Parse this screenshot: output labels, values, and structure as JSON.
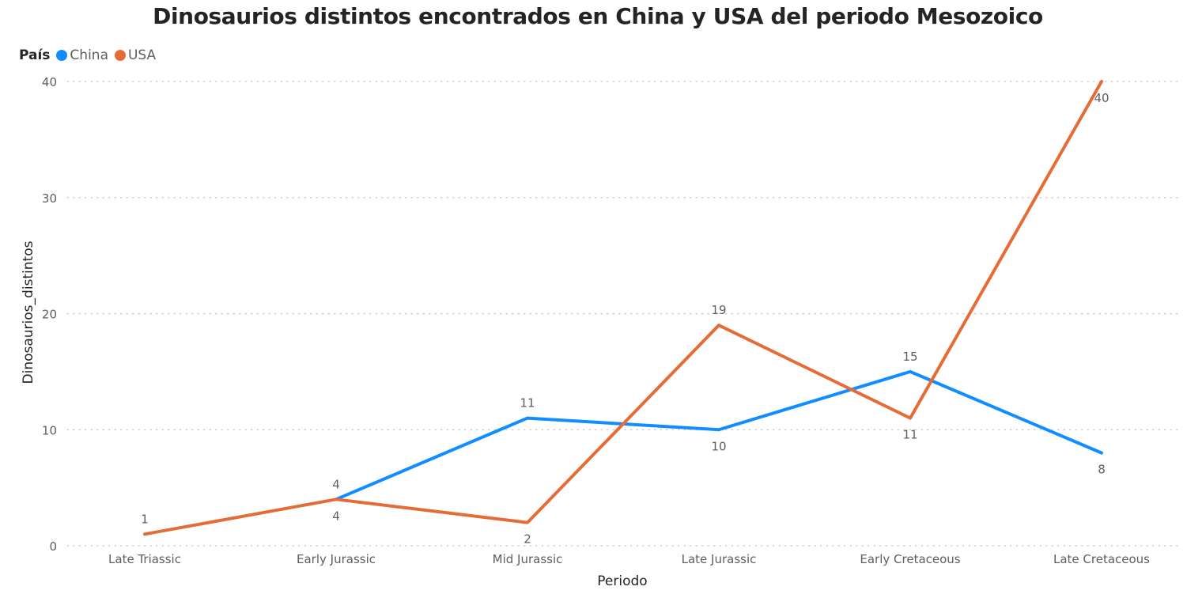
{
  "title": "Dinosaurios distintos encontrados en China y USA del periodo Mesozoico",
  "legend": {
    "title": "País",
    "items": [
      {
        "label": "China",
        "color": "#118DFF"
      },
      {
        "label": "USA",
        "color": "#E66C37"
      }
    ]
  },
  "chart_data": {
    "type": "line",
    "title": "Dinosaurios distintos encontrados en China y USA del periodo Mesozoico",
    "xlabel": "Periodo",
    "ylabel": "Dinosaurios_distintos",
    "categories": [
      "Late Triassic",
      "Early Jurassic",
      "Mid Jurassic",
      "Late Jurassic",
      "Early Cretaceous",
      "Late Cretaceous"
    ],
    "ylim": [
      0,
      40
    ],
    "yticks": [
      0,
      10,
      20,
      30,
      40
    ],
    "grid": true,
    "legend_position": "top-left",
    "series": [
      {
        "name": "China",
        "color": "#118DFF",
        "values": [
          null,
          4,
          11,
          10,
          15,
          8
        ]
      },
      {
        "name": "USA",
        "color": "#E66C37",
        "values": [
          1,
          4,
          2,
          19,
          11,
          40
        ]
      }
    ]
  }
}
